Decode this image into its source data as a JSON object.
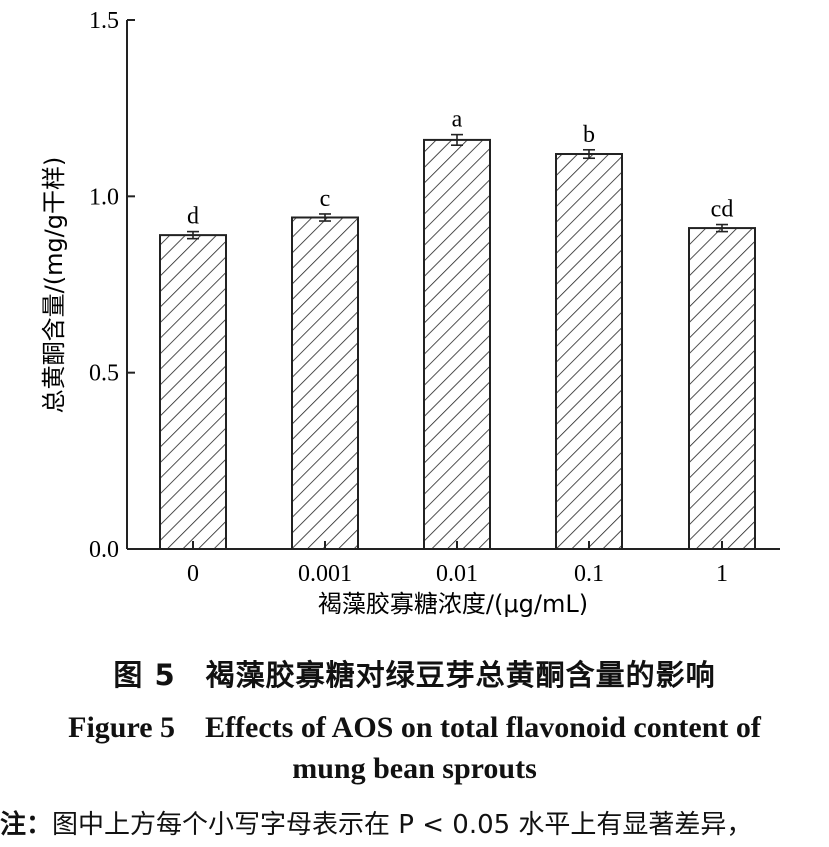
{
  "chart_data": {
    "type": "bar",
    "categories": [
      "0",
      "0.001",
      "0.01",
      "0.1",
      "1"
    ],
    "values": [
      0.89,
      0.94,
      1.16,
      1.12,
      0.91
    ],
    "errors": [
      0.01,
      0.01,
      0.015,
      0.012,
      0.01
    ],
    "letters": [
      "d",
      "c",
      "a",
      "b",
      "cd"
    ],
    "xlabel": "褐藻胶寡糖浓度/(μg/mL)",
    "ylabel": "总黄酮含量/(mg/g干样)",
    "ylim": [
      0,
      1.5
    ],
    "yticks": [
      "0.0",
      "0.5",
      "1.0",
      "1.5"
    ],
    "ytick_values": [
      0,
      0.5,
      1.0,
      1.5
    ],
    "grid": false,
    "pattern": "diagonal-hatch",
    "bar_color": "#ffffff",
    "line_color": "#222222"
  },
  "caption": {
    "zh": "图 5　褐藻胶寡糖对绿豆芽总黄酮含量的影响",
    "en_line1": "Figure 5　Effects of AOS on total flavonoid content of",
    "en_line2": "mung bean sprouts"
  },
  "note": {
    "lead": "注：",
    "text": "图中上方每个小写字母表示在 P < 0.05 水平上有显著差异，"
  }
}
